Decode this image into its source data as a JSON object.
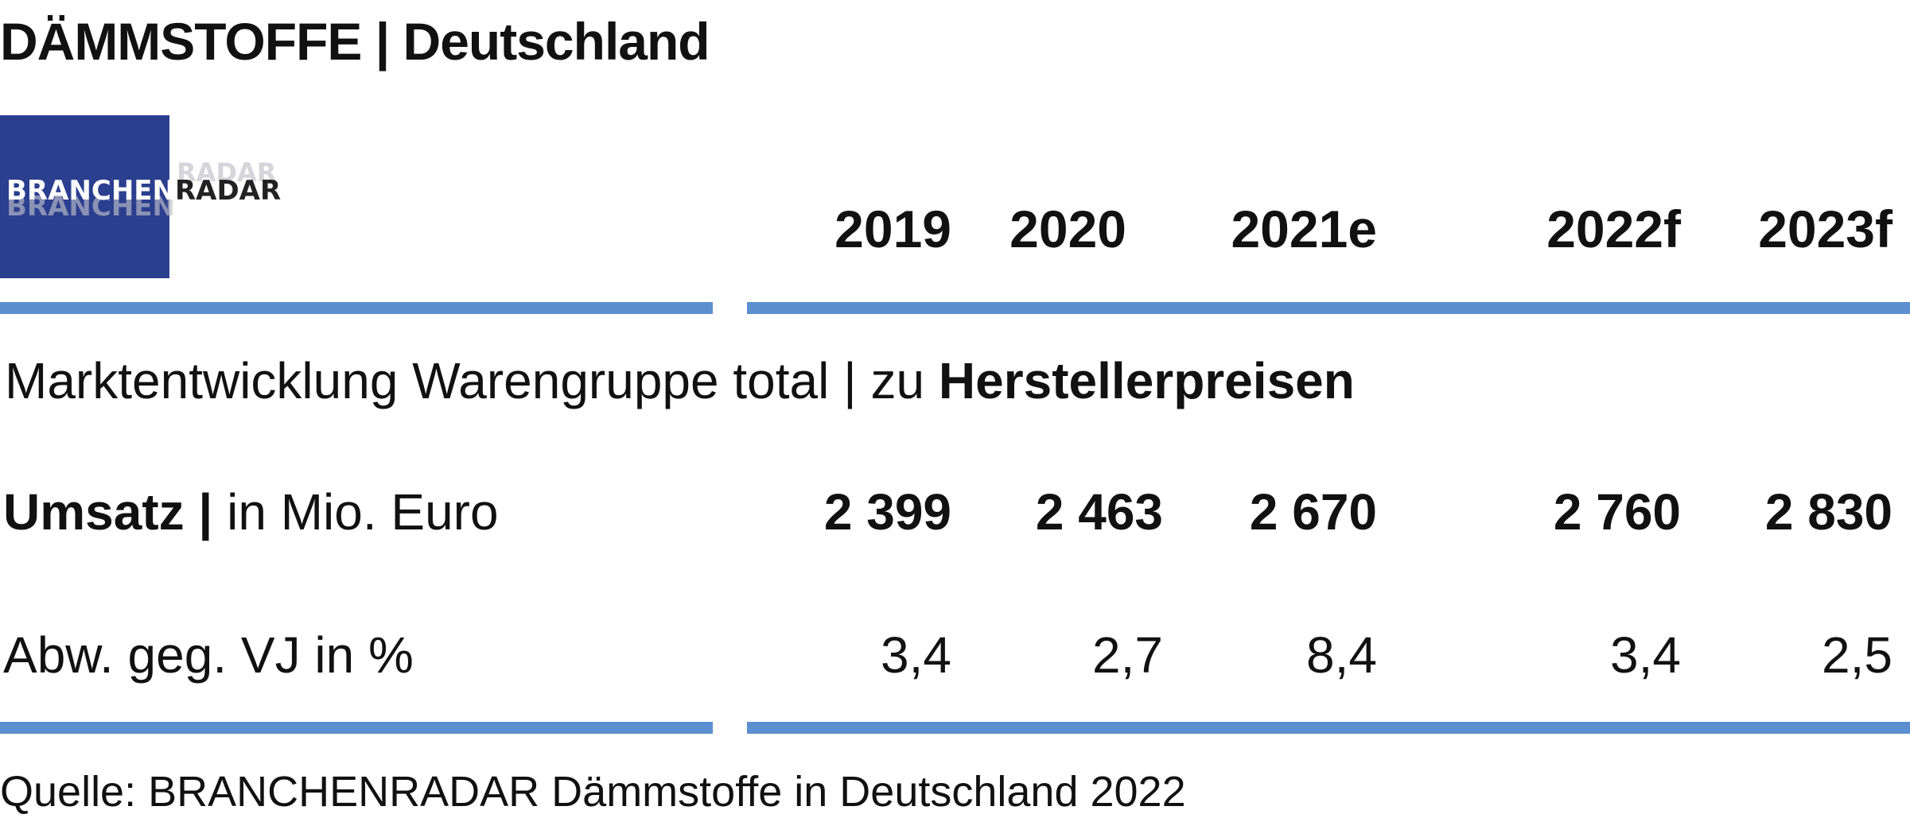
{
  "header": {
    "title": "DÄMMSTOFFE | Deutschland"
  },
  "logo": {
    "part1": "BRANCHEN",
    "part2": "RADAR",
    "shadow1": "BRANCHEN",
    "shadow2": "RADAR",
    "colors": {
      "background": "#2b3f8f",
      "text_light": "#ffffff",
      "text_dark": "#222222"
    }
  },
  "table": {
    "years": [
      "2019",
      "2020",
      "2021e",
      "2022f",
      "2023f"
    ],
    "subtitle": {
      "prefix": "Marktentwicklung Warengruppe total | zu ",
      "bold": "Herstellerpreisen"
    },
    "rows": [
      {
        "label_bold": "Umsatz |",
        "label_rest": " in Mio. Euro",
        "values": [
          "2 399",
          "2 463",
          "2 670",
          "2 760",
          "2 830"
        ]
      },
      {
        "label_bold": "",
        "label_rest": "Abw. geg. VJ in %",
        "values": [
          "3,4",
          "2,7",
          "8,4",
          "3,4",
          "2,5"
        ]
      }
    ],
    "rule_color": "#5b8fd0"
  },
  "footer": {
    "source": "Quelle: BRANCHENRADAR Dämmstoffe in Deutschland 2022"
  }
}
